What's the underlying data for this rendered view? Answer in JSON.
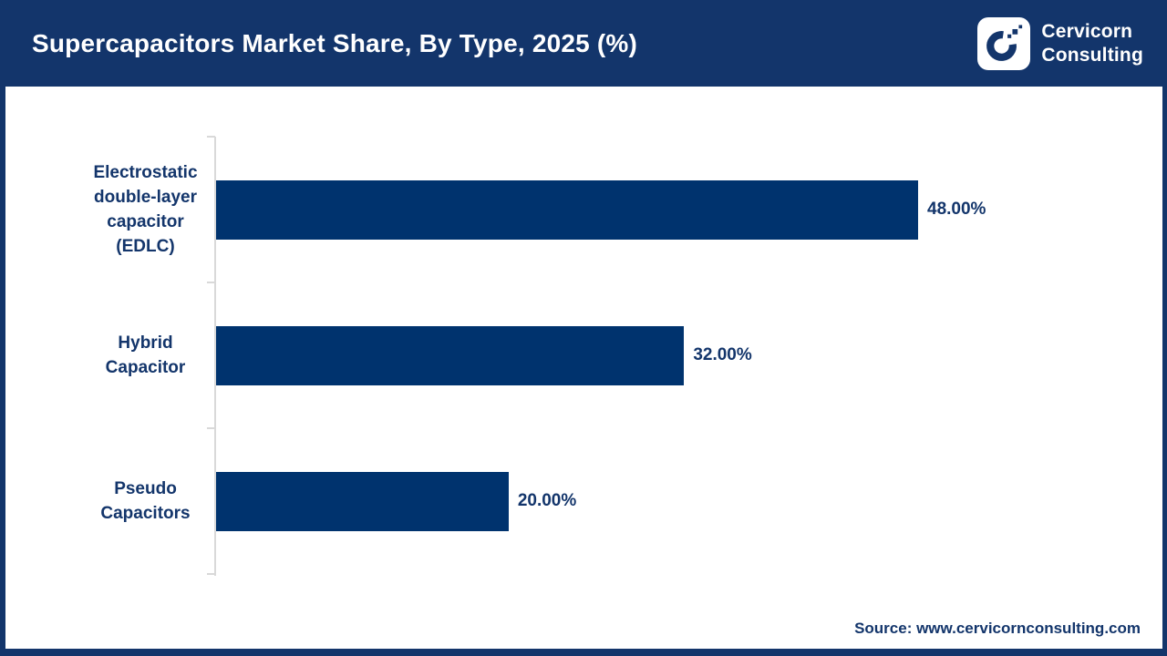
{
  "header": {
    "title": "Supercapacitors Market Share, By Type, 2025 (%)",
    "logo": {
      "line1": "Cervicorn",
      "line2": "Consulting"
    }
  },
  "footer": {
    "source": "Source: www.cervicornconsulting.com"
  },
  "colors": {
    "header_navy": "#13356B",
    "bar_navy": "#00336E",
    "label_navy": "#13356B",
    "axis_gray": "#D9D9D9",
    "title_white": "#FFFFFF"
  },
  "chart_data": {
    "type": "bar",
    "orientation": "horizontal",
    "title": "Supercapacitors Market Share, By Type, 2025 (%)",
    "categories": [
      "Electrostatic double-layer capacitor (EDLC)",
      "Hybrid Capacitor",
      "Pseudo Capacitors"
    ],
    "category_lines": [
      [
        "Electrostatic",
        "double-layer",
        "capacitor",
        "(EDLC)"
      ],
      [
        "Hybrid",
        "Capacitor"
      ],
      [
        "Pseudo",
        "Capacitors"
      ]
    ],
    "values": [
      48,
      32,
      20
    ],
    "value_labels": [
      "48.00%",
      "32.00%",
      "20.00%"
    ],
    "unit": "%",
    "value_axis_visible": false,
    "gridlines": false,
    "legend": "none",
    "bar_color": "#00336E",
    "category_axis_color": "#D9D9D9"
  }
}
